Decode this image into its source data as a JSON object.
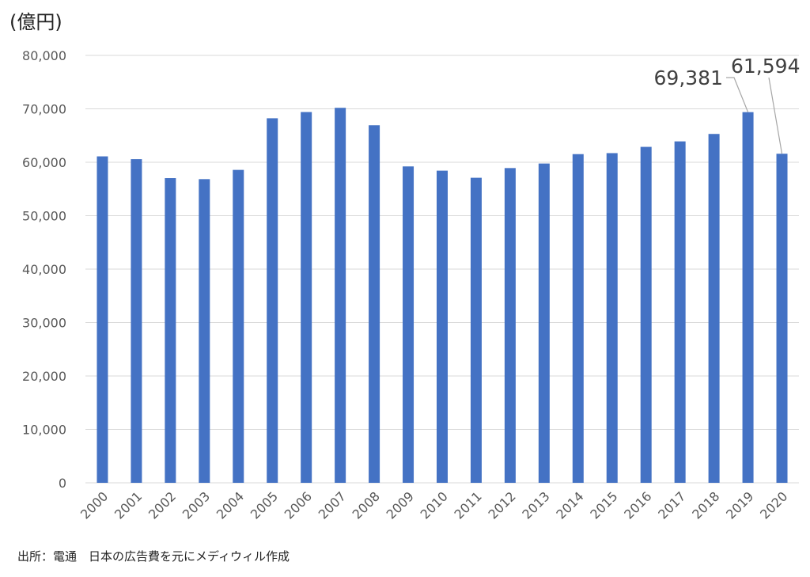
{
  "unit_label": "(億円)",
  "source_note": "出所：電通　日本の広告費を元にメディウィル作成",
  "colors": {
    "bar": "#4472C4",
    "grid": "#d9d9d9",
    "axis_text": "#595959",
    "callout": "#a6a6a6"
  },
  "chart_data": {
    "type": "bar",
    "categories": [
      "2000",
      "2001",
      "2002",
      "2003",
      "2004",
      "2005",
      "2006",
      "2007",
      "2008",
      "2009",
      "2010",
      "2011",
      "2012",
      "2013",
      "2014",
      "2015",
      "2016",
      "2017",
      "2018",
      "2019",
      "2020"
    ],
    "values": [
      61102,
      60580,
      57032,
      56841,
      58571,
      68235,
      69399,
      70191,
      66926,
      59222,
      58427,
      57096,
      58913,
      59762,
      61522,
      61710,
      62880,
      63907,
      65300,
      69381,
      61594
    ],
    "ylim": [
      0,
      80000
    ],
    "yticks": [
      "0",
      "10,000",
      "20,000",
      "30,000",
      "40,000",
      "50,000",
      "60,000",
      "70,000",
      "80,000"
    ],
    "ytick_values": [
      0,
      10000,
      20000,
      30000,
      40000,
      50000,
      60000,
      70000,
      80000
    ],
    "grid": true,
    "annotations": [
      {
        "category": "2019",
        "text": "69,381"
      },
      {
        "category": "2020",
        "text": "61,594"
      }
    ]
  }
}
